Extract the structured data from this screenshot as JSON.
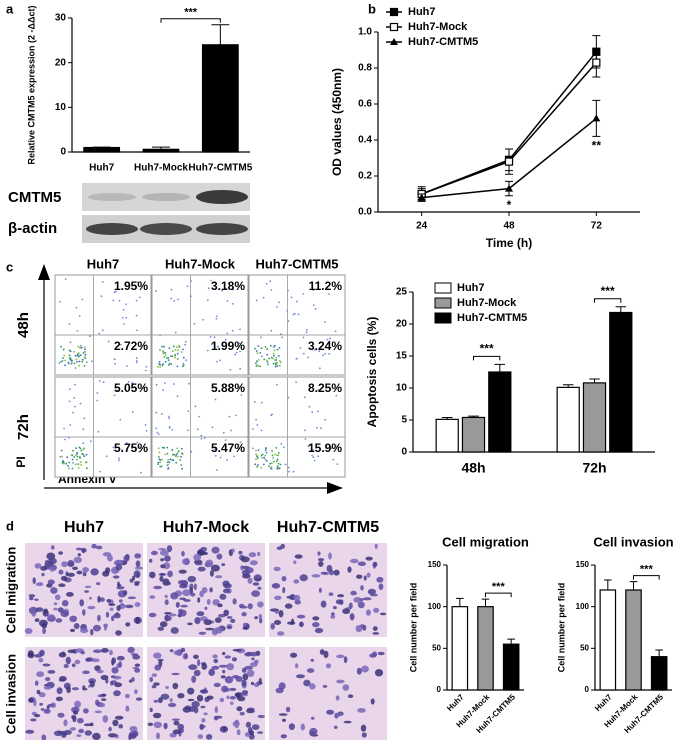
{
  "panel_labels": [
    "a",
    "b",
    "c",
    "d"
  ],
  "blot": {
    "labels": [
      "CMTM5",
      "β-actin"
    ]
  },
  "flow": {
    "rows": [
      "48h",
      "72h"
    ],
    "columns": [
      "Huh7",
      "Huh7-Mock",
      "Huh7-CMTM5"
    ],
    "cells": [
      [
        [
          "1.95%",
          "2.72%"
        ],
        [
          "3.18%",
          "1.99%"
        ],
        [
          "11.2%",
          "3.24%"
        ]
      ],
      [
        [
          "5.05%",
          "5.75%"
        ],
        [
          "5.88%",
          "5.47%"
        ],
        [
          "8.25%",
          "15.9%"
        ]
      ]
    ],
    "y_label": "PI",
    "x_label": "Annexin V"
  },
  "images": {
    "columns": [
      "Huh7",
      "Huh7-Mock",
      "Huh7-CMTM5"
    ],
    "rows": [
      "Cell migration",
      "Cell invasion"
    ]
  },
  "chart_data": [
    {
      "type": "bar",
      "y_label": "Relative CMTM5 expression (2 -ΔΔct)",
      "categories": [
        "Huh7",
        "Huh7-Mock",
        "Huh7-CMTM5"
      ],
      "values": [
        1,
        0.6,
        24
      ],
      "errors": [
        0.1,
        0.5,
        4.5
      ],
      "colors": [
        "#000000",
        "#000000",
        "#000000"
      ],
      "ylim": [
        0,
        30
      ],
      "yticks": [
        0,
        10,
        20,
        30
      ],
      "annotations": [
        {
          "text": "***",
          "between": [
            "Huh7-Mock",
            "Huh7-CMTM5"
          ]
        }
      ]
    },
    {
      "type": "line",
      "x_label": "Time (h)",
      "y_label": "OD values (450nm)",
      "x": [
        24,
        48,
        72
      ],
      "xlim": [
        12,
        84
      ],
      "xticks": [
        24,
        48,
        72
      ],
      "ylim": [
        0,
        1
      ],
      "yticks": [
        {
          "value": 0,
          "label": "0.0"
        },
        0.2,
        0.4,
        0.6,
        0.8,
        {
          "value": 1,
          "label": "1.0"
        }
      ],
      "legend": "upper left",
      "series": [
        {
          "name": "Huh7",
          "color": "#000000",
          "marker": "square",
          "values": [
            0.1,
            0.29,
            0.89
          ],
          "errors": [
            0.04,
            0.06,
            0.09
          ]
        },
        {
          "name": "Huh7-Mock",
          "color": "#000000",
          "marker": "open-square",
          "values": [
            0.1,
            0.28,
            0.83
          ],
          "errors": [
            0.03,
            0.07,
            0.08
          ]
        },
        {
          "name": "Huh7-CMTM5",
          "color": "#000000",
          "marker": "triangle",
          "values": [
            0.08,
            0.13,
            0.52
          ],
          "errors": [
            0.02,
            0.04,
            0.1
          ]
        }
      ],
      "annotations": [
        {
          "text": "*",
          "series": "Huh7-CMTM5",
          "x": 48
        },
        {
          "text": "**",
          "series": "Huh7-CMTM5",
          "x": 72
        }
      ]
    },
    {
      "type": "grouped-bar",
      "y_label": "Apoptosis cells (%)",
      "categories": [
        "48h",
        "72h"
      ],
      "ylim": [
        0,
        25
      ],
      "yticks": [
        0,
        5,
        10,
        15,
        20,
        25
      ],
      "legend": "upper left",
      "series": [
        {
          "name": "Huh7",
          "color": "#ffffff",
          "values": [
            5.1,
            10.1
          ],
          "errors": [
            0.3,
            0.4
          ]
        },
        {
          "name": "Huh7-Mock",
          "color": "#999999",
          "values": [
            5.4,
            10.8
          ],
          "errors": [
            0.2,
            0.6
          ]
        },
        {
          "name": "Huh7-CMTM5",
          "color": "#000000",
          "values": [
            12.5,
            21.8
          ],
          "errors": [
            1.2,
            0.9
          ]
        }
      ],
      "annotations": [
        {
          "text": "***",
          "between": [
            "Huh7-Mock",
            "Huh7-CMTM5"
          ]
        }
      ]
    },
    {
      "type": "bar",
      "title": "Cell migration",
      "y_label": "Cell number per field",
      "categories": [
        "Huh7",
        "Huh7-Mock",
        "Huh7-CMTM5"
      ],
      "values": [
        100,
        100,
        55
      ],
      "errors": [
        10,
        9,
        6
      ],
      "colors": [
        "#ffffff",
        "#999999",
        "#000000"
      ],
      "ylim": [
        0,
        150
      ],
      "yticks": [
        0,
        50,
        100,
        150
      ],
      "xtick_rotation": 45,
      "annotations": [
        {
          "text": "***",
          "between": [
            "Huh7-Mock",
            "Huh7-CMTM5"
          ]
        }
      ]
    },
    {
      "type": "bar",
      "title": "Cell invasion",
      "y_label": "Cell number per field",
      "categories": [
        "Huh7",
        "Huh7-Mock",
        "Huh7-CMTM5"
      ],
      "values": [
        120,
        120,
        40
      ],
      "errors": [
        12,
        10,
        8
      ],
      "colors": [
        "#ffffff",
        "#999999",
        "#000000"
      ],
      "ylim": [
        0,
        150
      ],
      "yticks": [
        0,
        50,
        100,
        150
      ],
      "xtick_rotation": 45,
      "annotations": [
        {
          "text": "***",
          "between": [
            "Huh7-Mock",
            "Huh7-CMTM5"
          ]
        }
      ]
    }
  ]
}
